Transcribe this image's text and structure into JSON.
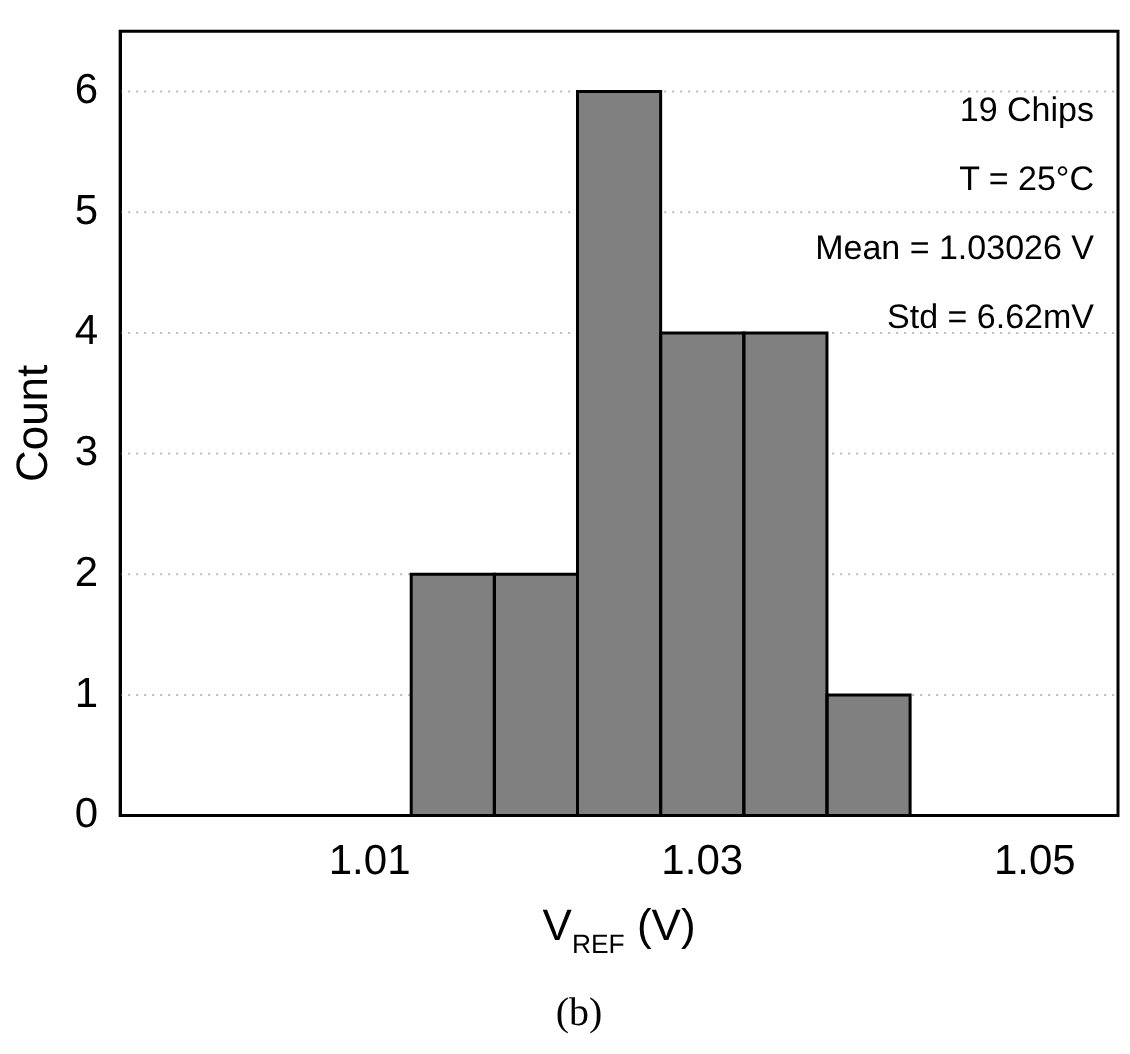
{
  "chart_data": {
    "type": "histogram",
    "xlabel": "V$_{REF}$ (V)",
    "ylabel": "Count",
    "bins": [
      1.0125,
      1.0175,
      1.0225,
      1.0275,
      1.0325,
      1.0375,
      1.0425
    ],
    "values": [
      2,
      2,
      6,
      4,
      4,
      1
    ],
    "color": "#808080",
    "xlim": [
      0.995,
      1.055
    ],
    "xticks": [
      1.01,
      1.03,
      1.05
    ],
    "ylim": [
      0,
      6.5
    ],
    "yticks": [
      0,
      1,
      2,
      3,
      4,
      5,
      6
    ],
    "grid": "y",
    "legend": false,
    "annotations": [
      "19 Chips",
      "T = 25°C",
      "Mean = 1.03026 V",
      "Std = 6.62mV",
      "(b)"
    ]
  }
}
